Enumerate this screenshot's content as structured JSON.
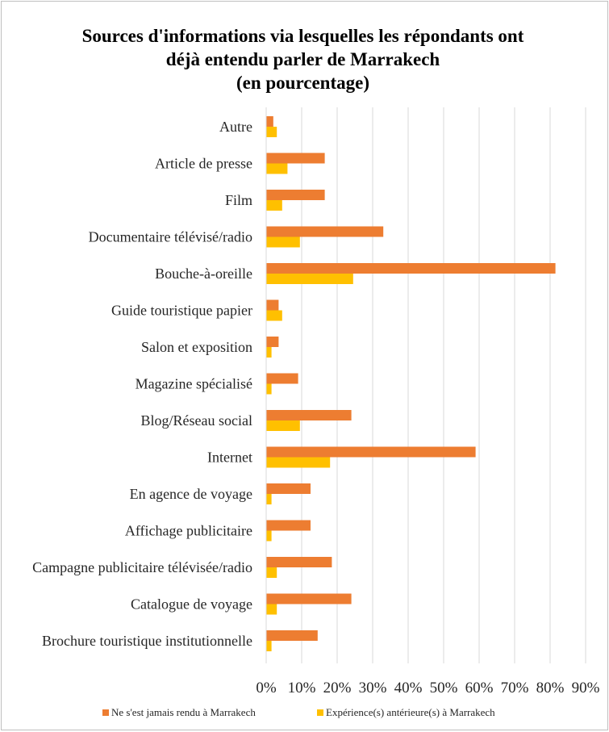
{
  "chart_data": {
    "type": "bar",
    "orientation": "horizontal",
    "title_lines": [
      "Sources d'informations via lesquelles les répondants ont",
      "déjà entendu parler de Marrakech",
      "(en pourcentage)"
    ],
    "categories": [
      "Autre",
      "Article de presse",
      "Film",
      "Documentaire télévisé/radio",
      "Bouche-à-oreille",
      "Guide touristique papier",
      "Salon et exposition",
      "Magazine spécialisé",
      "Blog/Réseau social",
      "Internet",
      "En agence de voyage",
      "Affichage publicitaire",
      "Campagne publicitaire télévisée/radio",
      "Catalogue de voyage",
      "Brochure touristique institutionnelle"
    ],
    "series": [
      {
        "name": "Ne s'est jamais rendu à Marrakech",
        "color": "#ed7d31",
        "values": [
          2,
          16.5,
          16.5,
          33,
          81.5,
          3.5,
          3.5,
          9,
          24,
          59,
          12.5,
          12.5,
          18.5,
          24,
          14.5
        ]
      },
      {
        "name": "Expérience(s) antérieure(s) à Marrakech",
        "color": "#ffc000",
        "values": [
          3,
          6,
          4.5,
          9.5,
          24.5,
          4.5,
          1.5,
          1.5,
          9.5,
          18,
          1.5,
          1.5,
          3,
          3,
          1.5
        ]
      }
    ],
    "x_ticks": [
      "0%",
      "10%",
      "20%",
      "30%",
      "40%",
      "50%",
      "60%",
      "70%",
      "80%",
      "90%"
    ],
    "xlim": [
      0,
      90
    ],
    "grid": true,
    "legend_position": "bottom"
  }
}
